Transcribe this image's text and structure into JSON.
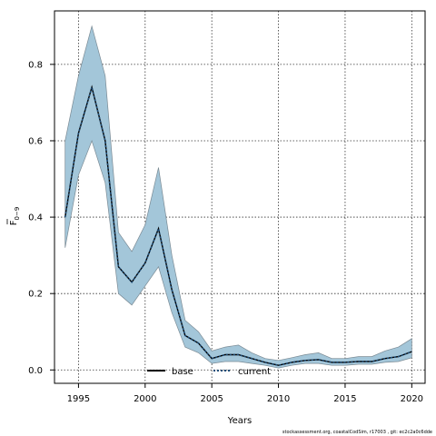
{
  "chart_data": {
    "type": "line",
    "xlabel": "Years",
    "ylabel_main": "F",
    "ylabel_sub": "0−9",
    "xlim": [
      1993.2,
      2021.0
    ],
    "ylim": [
      -0.035,
      0.94
    ],
    "xticks": [
      1995,
      2000,
      2005,
      2010,
      2015,
      2020
    ],
    "yticks": [
      0.0,
      0.2,
      0.4,
      0.6,
      0.8
    ],
    "ytick_labels": [
      "0.0",
      "0.2",
      "0.4",
      "0.6",
      "0.8"
    ],
    "grid": true,
    "legend_position": "bottom-center",
    "x": [
      1994,
      1995,
      1996,
      1997,
      1998,
      1999,
      2000,
      2001,
      2002,
      2003,
      2004,
      2005,
      2006,
      2007,
      2008,
      2009,
      2010,
      2011,
      2012,
      2013,
      2014,
      2015,
      2016,
      2017,
      2018,
      2019,
      2020
    ],
    "series": [
      {
        "name": "base",
        "style": "solid",
        "color": "#000000",
        "values": [
          0.4,
          0.62,
          0.74,
          0.6,
          0.27,
          0.23,
          0.28,
          0.37,
          0.21,
          0.09,
          0.07,
          0.03,
          0.04,
          0.04,
          0.03,
          0.02,
          0.012,
          0.02,
          0.025,
          0.027,
          0.02,
          0.02,
          0.022,
          0.022,
          0.03,
          0.035,
          0.048
        ]
      },
      {
        "name": "current",
        "style": "dotted",
        "color": "#1f4e79",
        "values": [
          0.4,
          0.62,
          0.74,
          0.6,
          0.27,
          0.23,
          0.28,
          0.37,
          0.21,
          0.09,
          0.07,
          0.03,
          0.04,
          0.04,
          0.03,
          0.02,
          0.012,
          0.02,
          0.025,
          0.027,
          0.02,
          0.02,
          0.022,
          0.022,
          0.03,
          0.035,
          0.048
        ]
      }
    ],
    "band": {
      "color": "#a3c6d9",
      "edge_color": "#7a8a94",
      "upper": [
        0.6,
        0.77,
        0.9,
        0.77,
        0.36,
        0.31,
        0.38,
        0.53,
        0.3,
        0.13,
        0.1,
        0.05,
        0.06,
        0.065,
        0.045,
        0.03,
        0.025,
        0.032,
        0.04,
        0.045,
        0.03,
        0.03,
        0.035,
        0.035,
        0.05,
        0.06,
        0.082
      ],
      "lower": [
        0.32,
        0.51,
        0.6,
        0.49,
        0.2,
        0.17,
        0.22,
        0.27,
        0.15,
        0.06,
        0.045,
        0.017,
        0.022,
        0.022,
        0.017,
        0.012,
        0.005,
        0.012,
        0.017,
        0.017,
        0.012,
        0.012,
        0.015,
        0.015,
        0.02,
        0.022,
        0.032
      ]
    }
  },
  "footer": {
    "credit": "stockassessment.org, coastalCodSim, r17003 , git: ec2c2a0c6dde"
  }
}
